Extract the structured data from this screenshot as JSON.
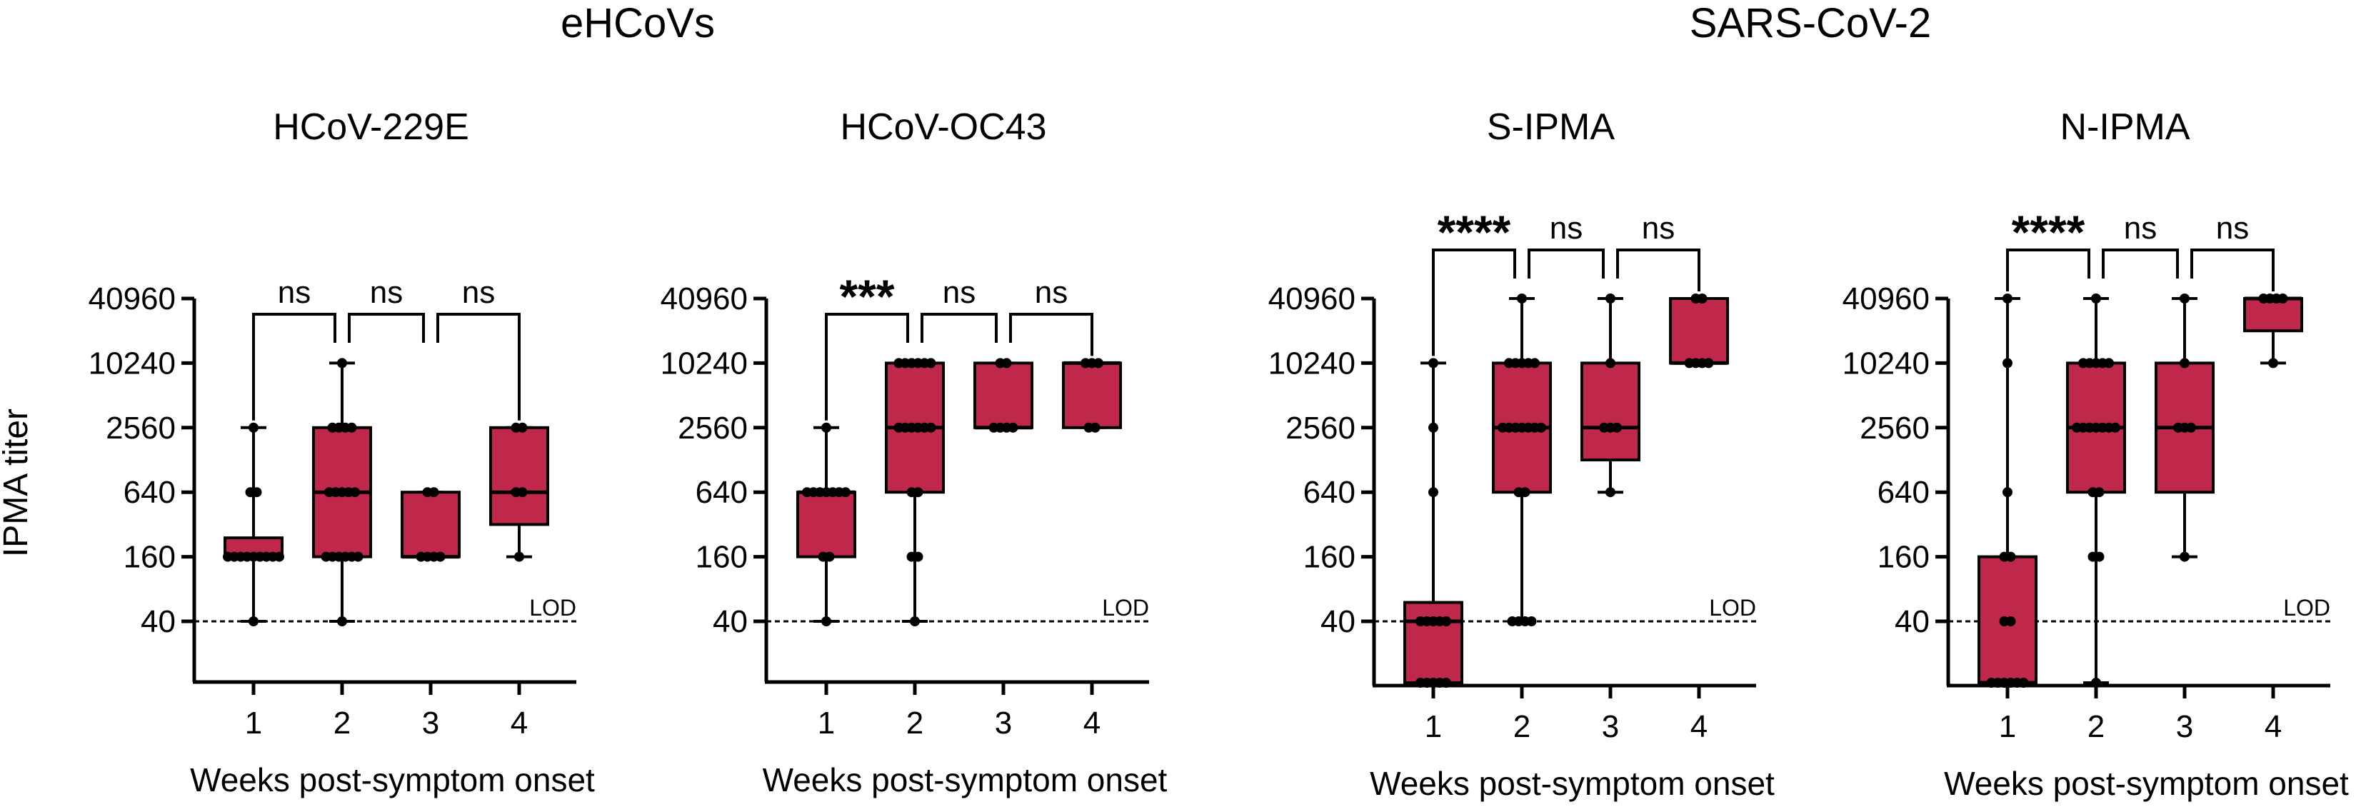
{
  "group_titles": [
    "eHCoVs",
    "SARS-CoV-2"
  ],
  "y_axis_label": "IPMA titer",
  "lod_label": "LOD",
  "colors": {
    "box_fill": "#C0284B",
    "line": "#000000"
  },
  "chart_data": [
    {
      "type": "box",
      "title": "HCoV-229E",
      "xlabel": "Weeks post-symptom onset",
      "ylabel": "IPMA titer",
      "yscale": "log2",
      "ylim": [
        10,
        40960
      ],
      "yticks": [
        40,
        160,
        640,
        2560,
        10240,
        40960
      ],
      "ytick_labels": [
        "40",
        "160",
        "640",
        "2560",
        "10240",
        "40960"
      ],
      "lod": 40,
      "categories": [
        "1",
        "2",
        "3",
        "4"
      ],
      "boxes": [
        {
          "min": 40,
          "q1": 160,
          "median": 160,
          "q3": 240,
          "max": 2560
        },
        {
          "min": 40,
          "q1": 160,
          "median": 640,
          "q3": 2560,
          "max": 10240
        },
        {
          "min": 160,
          "q1": 160,
          "median": 160,
          "q3": 640,
          "max": 640
        },
        {
          "min": 160,
          "q1": 320,
          "median": 640,
          "q3": 2560,
          "max": 2560
        }
      ],
      "points": [
        [
          40,
          160,
          160,
          160,
          160,
          160,
          160,
          160,
          160,
          160,
          640,
          640,
          2560
        ],
        [
          40,
          160,
          160,
          160,
          160,
          160,
          160,
          640,
          640,
          640,
          640,
          640,
          2560,
          2560,
          2560,
          2560,
          10240
        ],
        [
          160,
          160,
          160,
          160,
          640,
          640
        ],
        [
          160,
          640,
          640,
          2560,
          2560
        ]
      ],
      "comparisons": [
        {
          "from": "1",
          "to": "2",
          "label": "ns"
        },
        {
          "from": "2",
          "to": "3",
          "label": "ns"
        },
        {
          "from": "3",
          "to": "4",
          "label": "ns"
        }
      ]
    },
    {
      "type": "box",
      "title": "HCoV-OC43",
      "xlabel": "Weeks post-symptom onset",
      "ylabel": "IPMA titer",
      "yscale": "log2",
      "ylim": [
        10,
        40960
      ],
      "yticks": [
        40,
        160,
        640,
        2560,
        10240,
        40960
      ],
      "ytick_labels": [
        "40",
        "160",
        "640",
        "2560",
        "10240",
        "40960"
      ],
      "lod": 40,
      "categories": [
        "1",
        "2",
        "3",
        "4"
      ],
      "boxes": [
        {
          "min": 40,
          "q1": 160,
          "median": 640,
          "q3": 640,
          "max": 2560
        },
        {
          "min": 40,
          "q1": 640,
          "median": 2560,
          "q3": 10240,
          "max": 10240
        },
        {
          "min": 2560,
          "q1": 2560,
          "median": 2560,
          "q3": 10240,
          "max": 10240
        },
        {
          "min": 2560,
          "q1": 2560,
          "median": 10240,
          "q3": 10240,
          "max": 10240
        }
      ],
      "points": [
        [
          40,
          160,
          160,
          640,
          640,
          640,
          640,
          640,
          640,
          640,
          2560
        ],
        [
          40,
          160,
          160,
          640,
          640,
          2560,
          2560,
          2560,
          2560,
          2560,
          2560,
          10240,
          10240,
          10240,
          10240,
          10240,
          10240
        ],
        [
          2560,
          2560,
          2560,
          2560,
          10240,
          10240
        ],
        [
          2560,
          2560,
          10240,
          10240,
          10240
        ]
      ],
      "comparisons": [
        {
          "from": "1",
          "to": "2",
          "label": "***"
        },
        {
          "from": "2",
          "to": "3",
          "label": "ns"
        },
        {
          "from": "3",
          "to": "4",
          "label": "ns"
        }
      ]
    },
    {
      "type": "box",
      "title": "S-IPMA",
      "xlabel": "Weeks post-symptom onset",
      "ylabel": "IPMA titer",
      "yscale": "log2",
      "ylim": [
        10,
        40960
      ],
      "yticks": [
        40,
        160,
        640,
        2560,
        10240,
        40960
      ],
      "ytick_labels": [
        "40",
        "160",
        "640",
        "2560",
        "10240",
        "40960"
      ],
      "lod": 40,
      "categories": [
        "1",
        "2",
        "3",
        "4"
      ],
      "boxes": [
        {
          "min": 10,
          "q1": 10,
          "median": 40,
          "q3": 60,
          "max": 10240
        },
        {
          "min": 40,
          "q1": 640,
          "median": 2560,
          "q3": 10240,
          "max": 40960
        },
        {
          "min": 640,
          "q1": 1280,
          "median": 2560,
          "q3": 10240,
          "max": 40960
        },
        {
          "min": 10240,
          "q1": 10240,
          "median": 10240,
          "q3": 40960,
          "max": 40960
        }
      ],
      "points": [
        [
          10,
          10,
          10,
          10,
          10,
          40,
          40,
          40,
          40,
          40,
          640,
          2560,
          10240
        ],
        [
          40,
          40,
          40,
          40,
          640,
          640,
          2560,
          2560,
          2560,
          2560,
          2560,
          2560,
          2560,
          10240,
          10240,
          10240,
          10240,
          10240,
          40960
        ],
        [
          640,
          2560,
          2560,
          2560,
          10240,
          40960
        ],
        [
          10240,
          10240,
          10240,
          10240,
          40960,
          40960
        ]
      ],
      "comparisons": [
        {
          "from": "1",
          "to": "2",
          "label": "****"
        },
        {
          "from": "2",
          "to": "3",
          "label": "ns"
        },
        {
          "from": "3",
          "to": "4",
          "label": "ns"
        }
      ]
    },
    {
      "type": "box",
      "title": "N-IPMA",
      "xlabel": "Weeks post-symptom onset",
      "ylabel": "IPMA titer",
      "yscale": "log2",
      "ylim": [
        10,
        40960
      ],
      "yticks": [
        40,
        160,
        640,
        2560,
        10240,
        40960
      ],
      "ytick_labels": [
        "40",
        "160",
        "640",
        "2560",
        "10240",
        "40960"
      ],
      "lod": 40,
      "categories": [
        "1",
        "2",
        "3",
        "4"
      ],
      "boxes": [
        {
          "min": 10,
          "q1": 10,
          "median": 10,
          "q3": 160,
          "max": 40960
        },
        {
          "min": 10,
          "q1": 640,
          "median": 2560,
          "q3": 10240,
          "max": 40960
        },
        {
          "min": 160,
          "q1": 640,
          "median": 2560,
          "q3": 10240,
          "max": 40960
        },
        {
          "min": 10240,
          "q1": 20480,
          "median": 40960,
          "q3": 40960,
          "max": 40960
        }
      ],
      "points": [
        [
          10,
          10,
          10,
          10,
          10,
          10,
          40,
          40,
          160,
          160,
          640,
          10240,
          40960
        ],
        [
          10,
          160,
          160,
          640,
          640,
          2560,
          2560,
          2560,
          2560,
          2560,
          2560,
          2560,
          10240,
          10240,
          10240,
          10240,
          10240,
          40960
        ],
        [
          160,
          2560,
          2560,
          2560,
          10240,
          40960
        ],
        [
          10240,
          40960,
          40960,
          40960,
          40960
        ]
      ],
      "comparisons": [
        {
          "from": "1",
          "to": "2",
          "label": "****"
        },
        {
          "from": "2",
          "to": "3",
          "label": "ns"
        },
        {
          "from": "3",
          "to": "4",
          "label": "ns"
        }
      ]
    }
  ]
}
